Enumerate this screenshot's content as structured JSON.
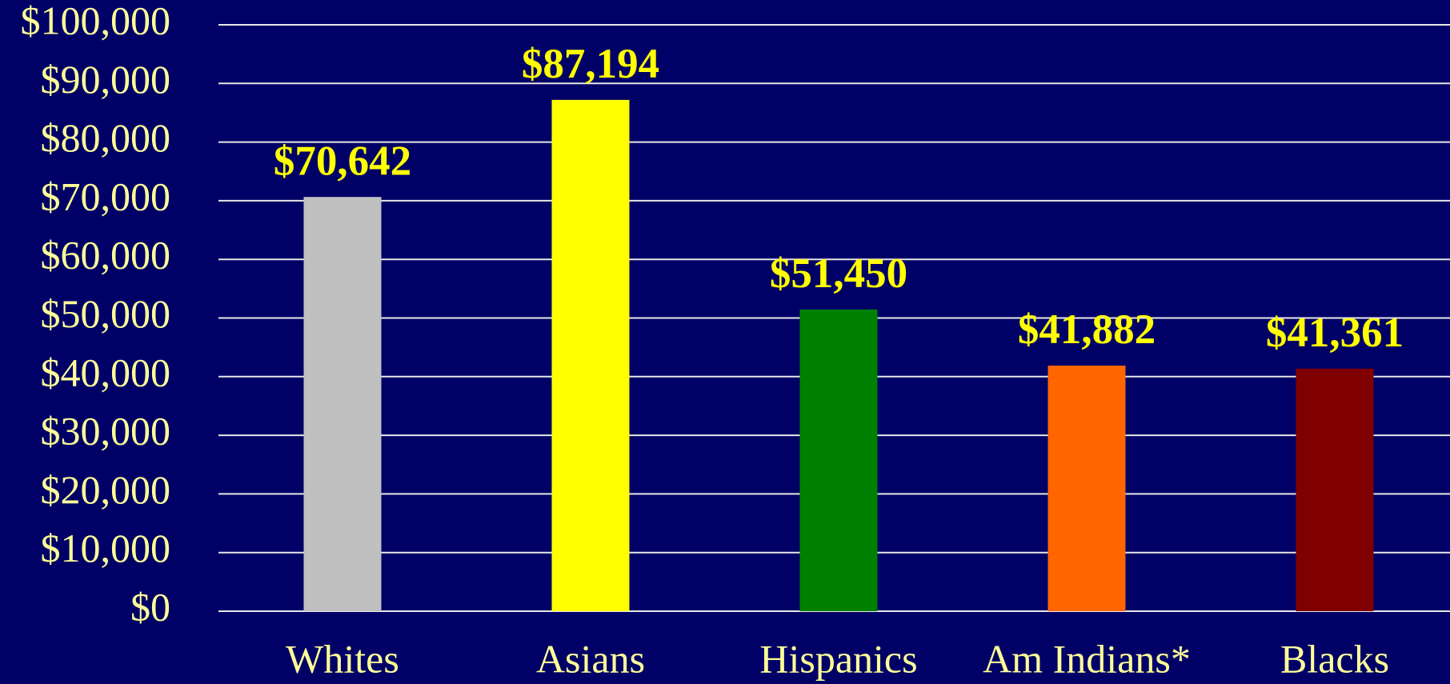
{
  "chart_data": {
    "type": "bar",
    "categories": [
      "Whites",
      "Asians",
      "Hispanics",
      "Am Indians*",
      "Blacks"
    ],
    "values": [
      70642,
      87194,
      51450,
      41882,
      41361
    ],
    "value_labels": [
      "$70,642",
      "$87,194",
      "$51,450",
      "$41,882",
      "$41,361"
    ],
    "colors": [
      "#c0c0c0",
      "#ffff00",
      "#008000",
      "#ff6600",
      "#800000"
    ],
    "ylim": [
      0,
      100000
    ],
    "yticks": [
      {
        "value": 0,
        "label": "$0"
      },
      {
        "value": 10000,
        "label": "$10,000"
      },
      {
        "value": 20000,
        "label": "$20,000"
      },
      {
        "value": 30000,
        "label": "$30,000"
      },
      {
        "value": 40000,
        "label": "$40,000"
      },
      {
        "value": 50000,
        "label": "$50,000"
      },
      {
        "value": 60000,
        "label": "$60,000"
      },
      {
        "value": 70000,
        "label": "$70,000"
      },
      {
        "value": 80000,
        "label": "$80,000"
      },
      {
        "value": 90000,
        "label": "$90,000"
      },
      {
        "value": 100000,
        "label": "$100,000"
      }
    ],
    "grid": true
  }
}
